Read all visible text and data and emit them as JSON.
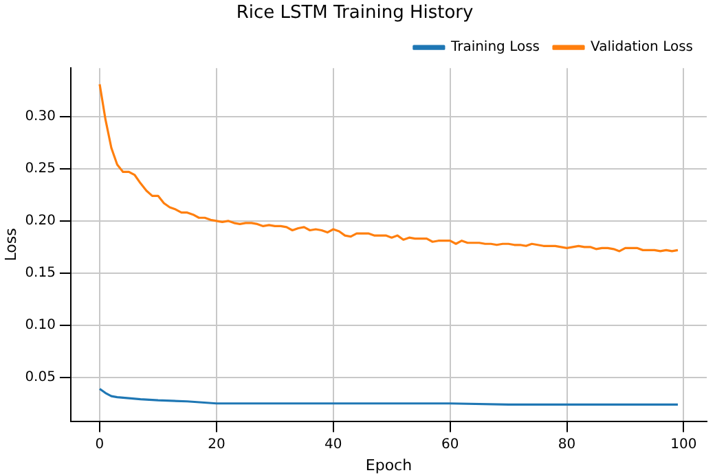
{
  "chart_data": {
    "type": "line",
    "title": "Rice LSTM Training History",
    "xlabel": "Epoch",
    "ylabel": "Loss",
    "xlim": [
      -4.95,
      103.95
    ],
    "xticks": [
      0,
      20,
      40,
      60,
      80,
      100
    ],
    "ylim": [
      0.008,
      0.3465
    ],
    "yticks": [
      {
        "value": 0.05,
        "label": "0.05"
      },
      {
        "value": 0.1,
        "label": "0.10"
      },
      {
        "value": 0.15,
        "label": "0.15"
      },
      {
        "value": 0.2,
        "label": "0.20"
      },
      {
        "value": 0.25,
        "label": "0.25"
      },
      {
        "value": 0.3,
        "label": "0.30"
      }
    ],
    "grid": true,
    "legend": "top right",
    "line_style": "solid",
    "marker": "none",
    "series": [
      {
        "name": "Training Loss",
        "color": "#1f77b4",
        "x": [
          0,
          1,
          2,
          3,
          5,
          7,
          10,
          15,
          20,
          30,
          40,
          50,
          60,
          70,
          80,
          90,
          99
        ],
        "values": [
          0.039,
          0.035,
          0.032,
          0.031,
          0.03,
          0.029,
          0.028,
          0.027,
          0.025,
          0.025,
          0.025,
          0.025,
          0.025,
          0.024,
          0.024,
          0.024,
          0.024
        ]
      },
      {
        "name": "Validation Loss",
        "color": "#ff7f0e",
        "x": [
          0,
          1,
          2,
          3,
          4,
          5,
          6,
          7,
          8,
          9,
          10,
          11,
          12,
          13,
          14,
          15,
          16,
          17,
          18,
          19,
          20,
          21,
          22,
          23,
          24,
          25,
          26,
          27,
          28,
          29,
          30,
          31,
          32,
          33,
          34,
          35,
          36,
          37,
          38,
          39,
          40,
          41,
          42,
          43,
          44,
          45,
          46,
          47,
          48,
          49,
          50,
          51,
          52,
          53,
          54,
          55,
          56,
          57,
          58,
          59,
          60,
          61,
          62,
          63,
          64,
          65,
          66,
          67,
          68,
          69,
          70,
          71,
          72,
          73,
          74,
          75,
          76,
          77,
          78,
          79,
          80,
          81,
          82,
          83,
          84,
          85,
          86,
          87,
          88,
          89,
          90,
          91,
          92,
          93,
          94,
          95,
          96,
          97,
          98,
          99
        ],
        "values": [
          0.331,
          0.297,
          0.27,
          0.254,
          0.247,
          0.247,
          0.244,
          0.236,
          0.229,
          0.224,
          0.224,
          0.217,
          0.213,
          0.211,
          0.208,
          0.208,
          0.206,
          0.203,
          0.203,
          0.201,
          0.2,
          0.199,
          0.2,
          0.198,
          0.197,
          0.198,
          0.198,
          0.197,
          0.195,
          0.196,
          0.195,
          0.195,
          0.194,
          0.191,
          0.193,
          0.194,
          0.191,
          0.192,
          0.191,
          0.189,
          0.192,
          0.19,
          0.186,
          0.185,
          0.188,
          0.188,
          0.188,
          0.186,
          0.186,
          0.186,
          0.184,
          0.186,
          0.182,
          0.184,
          0.183,
          0.183,
          0.183,
          0.18,
          0.181,
          0.181,
          0.181,
          0.178,
          0.181,
          0.179,
          0.179,
          0.179,
          0.178,
          0.178,
          0.177,
          0.178,
          0.178,
          0.177,
          0.177,
          0.176,
          0.178,
          0.177,
          0.176,
          0.176,
          0.176,
          0.175,
          0.174,
          0.175,
          0.176,
          0.175,
          0.175,
          0.173,
          0.174,
          0.174,
          0.173,
          0.171,
          0.174,
          0.174,
          0.174,
          0.172,
          0.172,
          0.172,
          0.171,
          0.172,
          0.171,
          0.172
        ]
      }
    ]
  }
}
